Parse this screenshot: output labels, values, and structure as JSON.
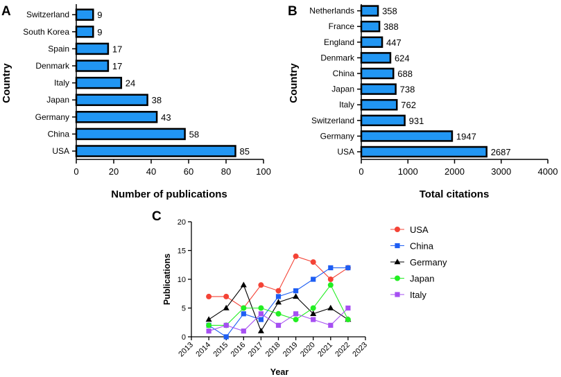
{
  "chart_data": [
    {
      "panel": "A",
      "type": "bar",
      "orientation": "horizontal",
      "categories": [
        "USA",
        "China",
        "Germany",
        "Japan",
        "Italy",
        "Denmark",
        "Spain",
        "South Korea",
        "Switzerland"
      ],
      "values": [
        85,
        58,
        43,
        38,
        24,
        17,
        17,
        9,
        9
      ],
      "value_labels": [
        "85",
        "58",
        "43",
        "38",
        "24",
        "17",
        "17",
        "9",
        "9"
      ],
      "xlabel": "Number of publications",
      "ylabel": "Country",
      "xlim": [
        0,
        100
      ],
      "xticks": [
        "0",
        "20",
        "40",
        "60",
        "80",
        "100"
      ],
      "bar_color": "#2196f3"
    },
    {
      "panel": "B",
      "type": "bar",
      "orientation": "horizontal",
      "categories": [
        "USA",
        "Germany",
        "Switzerland",
        "Italy",
        "Japan",
        "China",
        "Denmark",
        "England",
        "France",
        "Netherlands"
      ],
      "values": [
        2687,
        1947,
        931,
        762,
        738,
        688,
        624,
        447,
        388,
        358
      ],
      "value_labels": [
        "2687",
        "1947",
        "931",
        "762",
        "738",
        "688",
        "624",
        "447",
        "388",
        "358"
      ],
      "xlabel": "Total citations",
      "ylabel": "Country",
      "xlim": [
        0,
        4000
      ],
      "xticks": [
        "0",
        "1000",
        "2000",
        "3000",
        "4000"
      ],
      "bar_color": "#2196f3"
    },
    {
      "panel": "C",
      "type": "line",
      "x": [
        2014,
        2015,
        2016,
        2017,
        2018,
        2019,
        2020,
        2021,
        2022
      ],
      "xlim": [
        2013,
        2023
      ],
      "xticks": [
        "2013",
        "2014",
        "2015",
        "2016",
        "2017",
        "2018",
        "2019",
        "2020",
        "2021",
        "2022",
        "2023"
      ],
      "ylim": [
        0,
        20
      ],
      "yticks": [
        "0",
        "5",
        "10",
        "15",
        "20"
      ],
      "xlabel": "Year",
      "ylabel": "Publications",
      "legend_position": "right",
      "series": [
        {
          "name": "USA",
          "color": "#f44336",
          "marker": "circle",
          "values": [
            7,
            7,
            5,
            9,
            8,
            14,
            13,
            10,
            12
          ]
        },
        {
          "name": "China",
          "color": "#1e5ef3",
          "marker": "square",
          "values": [
            2,
            0,
            4,
            3,
            7,
            8,
            10,
            12,
            12
          ]
        },
        {
          "name": "Germany",
          "color": "#000000",
          "marker": "triangle",
          "values": [
            3,
            5,
            9,
            1,
            6,
            7,
            4,
            5,
            3
          ]
        },
        {
          "name": "Japan",
          "color": "#22ee22",
          "marker": "circle",
          "values": [
            2,
            2,
            5,
            5,
            4,
            3,
            5,
            9,
            3
          ]
        },
        {
          "name": "Italy",
          "color": "#a64ff2",
          "marker": "square",
          "values": [
            1,
            2,
            1,
            4,
            2,
            4,
            3,
            2,
            5
          ]
        }
      ]
    }
  ]
}
